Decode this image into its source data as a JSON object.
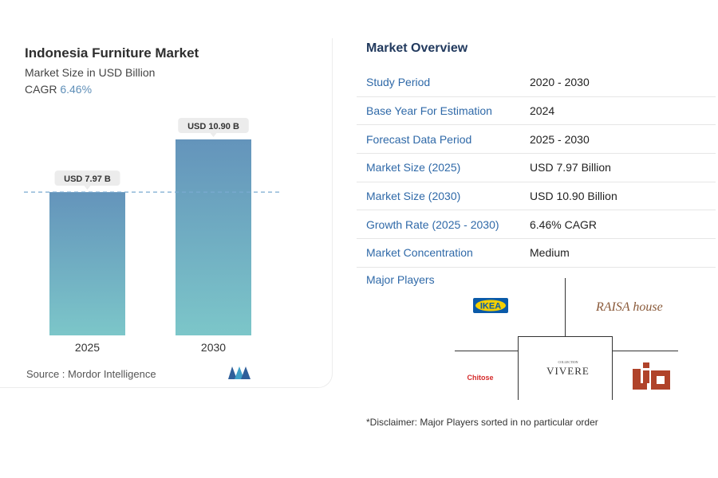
{
  "chart": {
    "title": "Indonesia Furniture Market",
    "subtitle": "Market Size in USD Billion",
    "cagr_label": "CAGR",
    "cagr_value": "6.46%",
    "source": "Source :  Mordor Intelligence"
  },
  "chart_data": {
    "type": "bar",
    "categories": [
      "2025",
      "2030"
    ],
    "values": [
      7.97,
      10.9
    ],
    "data_labels": [
      "USD 7.97 B",
      "USD 10.90 B"
    ],
    "title": "Indonesia Furniture Market",
    "subtitle": "Market Size in USD Billion",
    "ylim": [
      0,
      10.9
    ],
    "reference_line": 7.97,
    "colors": {
      "bar_top": "#6494bb",
      "bar_bottom": "#7cc6c9",
      "reference": "#7aaad0"
    }
  },
  "overview": {
    "title": "Market Overview",
    "rows": [
      {
        "label": "Study Period",
        "value": "2020 - 2030"
      },
      {
        "label": "Base Year For Estimation",
        "value": "2024"
      },
      {
        "label": "Forecast Data Period",
        "value": "2025 - 2030"
      },
      {
        "label": "Market Size (2025)",
        "value": "USD 7.97 Billion"
      },
      {
        "label": "Market Size (2030)",
        "value": "USD 10.90 Billion"
      },
      {
        "label": "Growth Rate (2025 - 2030)",
        "value": "6.46% CAGR"
      },
      {
        "label": "Market Concentration",
        "value": "Medium"
      }
    ],
    "players_title": "Major Players",
    "players": [
      "IKEA",
      "RAISA house",
      "VIVERE",
      "Chitose",
      "LIO"
    ],
    "disclaimer": "*Disclaimer: Major Players sorted in no particular order"
  },
  "colors": {
    "label_blue": "#2f69a8",
    "heading_navy": "#223a5e"
  }
}
